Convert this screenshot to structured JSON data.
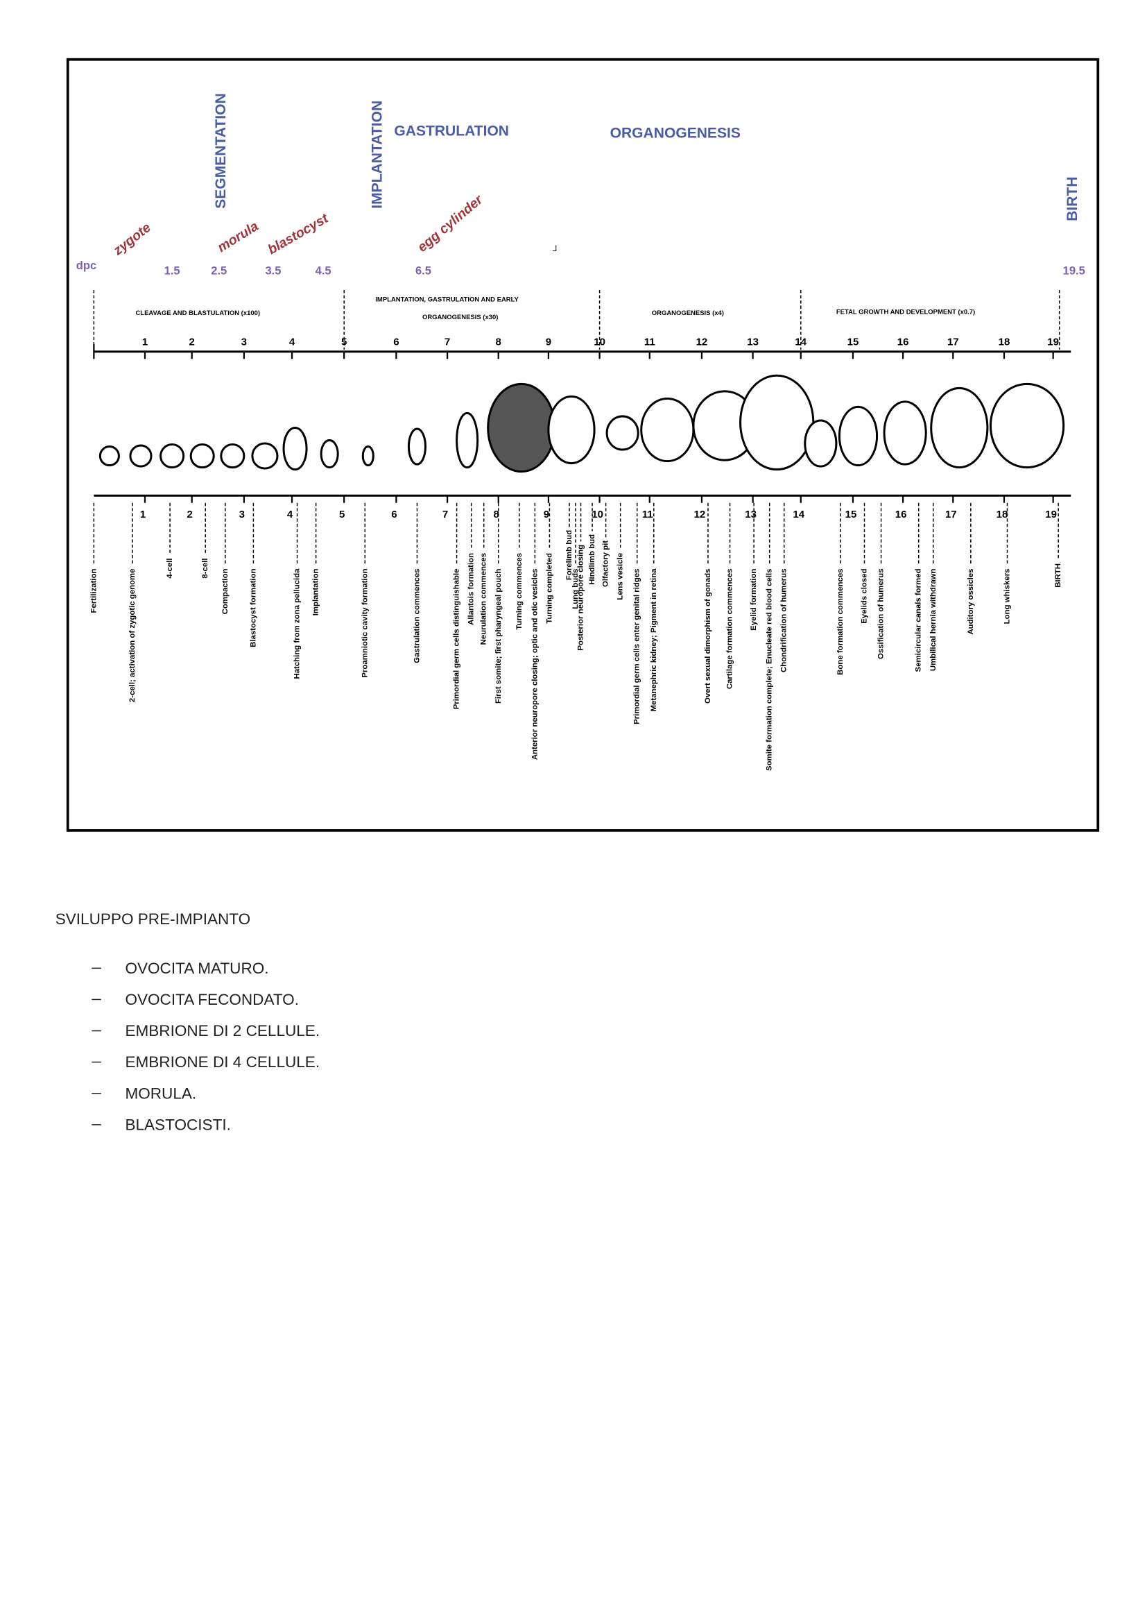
{
  "figure": {
    "headers": {
      "segmentation": "SEGMENTATION",
      "implantation": "IMPLANTATION",
      "gastrulation": "GASTRULATION",
      "organogenesis": "ORGANOGENESIS",
      "birth": "BIRTH"
    },
    "stages": [
      "zygote",
      "morula",
      "blastocyst",
      "egg cylinder"
    ],
    "dpc_label": "dpc",
    "dpc": [
      1.5,
      2.5,
      3.5,
      4.5,
      6.5,
      19.5
    ],
    "phases": [
      "CLEAVAGE AND BLASTULATION (x100)",
      "IMPLANTATION, GASTRULATION AND EARLY",
      "ORGANOGENESIS (x30)",
      "ORGANOGENESIS (x4)",
      "FETAL GROWTH AND DEVELOPMENT (x0.7)"
    ],
    "days": [
      1,
      2,
      3,
      4,
      5,
      6,
      7,
      8,
      9,
      10,
      11,
      12,
      13,
      14,
      15,
      16,
      17,
      18,
      19
    ],
    "events": [
      "Fertilization",
      "2-cell; activation of zygotic genome",
      "4-cell",
      "8-cell",
      "Compaction",
      "Blastocyst formation",
      "Hatching from zona pellucida",
      "Implantation",
      "Proamniotic cavity formation",
      "Gastrulation commences",
      "Primordial germ cells distinguishable",
      "Allantois formation",
      "Neurulation commences",
      "First somite; first pharyngeal pouch",
      "Turning commences",
      "Anterior neuropore closing; optic and otic vesicles",
      "Turning completed",
      "Forelimb bud",
      "Lung buds",
      "Posterior neuropore closing",
      "Hindlimb bud",
      "Olfactory pit",
      "Lens vesicle",
      "Primordial germ cells enter genital ridges",
      "Metanephric kidney;  Pigment in retina",
      "Overt sexual dimorphism of gonads",
      "Cartilage formation commences",
      "Eyelid formation",
      "Somite formation complete;  Enucleate red blood cells",
      "Chondrification of humerus",
      "Bone formation commences",
      "Eyelids closed",
      "Ossification of humerus",
      "Semicircular canals formed",
      "Umbilical hernia withdrawn",
      "Auditory ossicles",
      "Long whiskers",
      "BIRTH"
    ]
  },
  "body": {
    "heading": "SVILUPPO PRE-IMPIANTO",
    "items": [
      "OVOCITA MATURO.",
      "OVOCITA FECONDATO.",
      "EMBRIONE DI 2 CELLULE.",
      "EMBRIONE DI 4 CELLULE.",
      "MORULA.",
      "BLASTOCISTI."
    ]
  }
}
